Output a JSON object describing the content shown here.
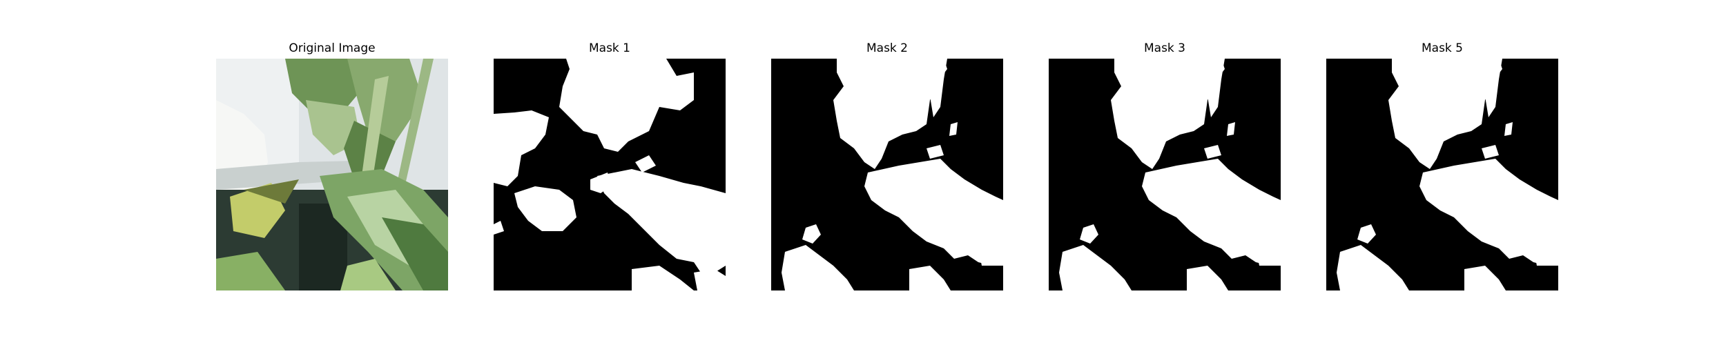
{
  "panels": [
    {
      "title": "Original Image",
      "kind": "photo"
    },
    {
      "title": "Mask 1",
      "kind": "mask"
    },
    {
      "title": "Mask 2",
      "kind": "mask"
    },
    {
      "title": "Mask 3",
      "kind": "mask"
    },
    {
      "title": "Mask 5",
      "kind": "mask"
    }
  ],
  "colors": {
    "mask_background": "#000000",
    "mask_foreground": "#ffffff",
    "leaf_dark": "#4f7a3f",
    "leaf_light": "#bcd4a0",
    "sky": "#e8ecef",
    "shadow": "#1d2a22"
  }
}
